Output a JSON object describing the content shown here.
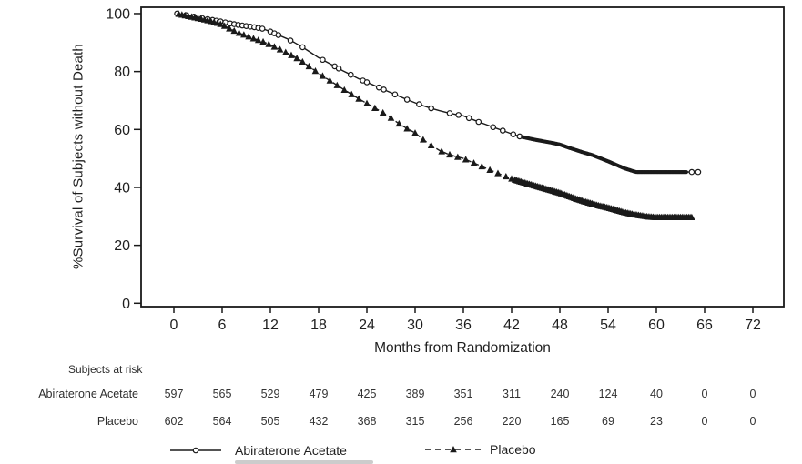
{
  "colors": {
    "ink": "#1a1a1a"
  },
  "y_axis": {
    "label": "%Survival of Subjects without Death",
    "ticks": [
      0,
      20,
      40,
      60,
      80,
      100
    ]
  },
  "x_axis": {
    "label": "Months from Randomization",
    "ticks": [
      0,
      6,
      12,
      18,
      24,
      30,
      36,
      42,
      48,
      54,
      60,
      66,
      72
    ]
  },
  "risk_table": {
    "title": "Subjects at risk",
    "rows": [
      {
        "label": "Abiraterone Acetate",
        "counts": [
          597,
          565,
          529,
          479,
          425,
          389,
          351,
          311,
          240,
          124,
          40,
          0,
          0
        ]
      },
      {
        "label": "Placebo",
        "counts": [
          602,
          564,
          505,
          432,
          368,
          315,
          256,
          220,
          165,
          69,
          23,
          0,
          0
        ]
      }
    ]
  },
  "legend": [
    {
      "label": "Abiraterone Acetate",
      "line": "solid",
      "marker": "open-circle"
    },
    {
      "label": "Placebo",
      "line": "dashed",
      "marker": "filled-triangle"
    }
  ],
  "chart_data": {
    "type": "line",
    "title": "",
    "xlabel": "Months from Randomization",
    "ylabel": "%Survival of Subjects without Death",
    "xlim": [
      0,
      72
    ],
    "ylim": [
      0,
      100
    ],
    "grid": false,
    "legend_position": "bottom",
    "series": [
      {
        "name": "Abiraterone Acetate",
        "line": "solid",
        "marker": "open-circle",
        "points": [
          [
            0.4,
            100
          ],
          [
            1,
            99.7
          ],
          [
            2,
            99.2
          ],
          [
            3,
            98.7
          ],
          [
            4,
            98.2
          ],
          [
            5,
            97.7
          ],
          [
            6,
            97.2
          ],
          [
            7,
            96.6
          ],
          [
            8,
            96.1
          ],
          [
            9,
            95.7
          ],
          [
            10,
            95.3
          ],
          [
            11,
            94.8
          ],
          [
            12,
            93.8
          ],
          [
            13,
            92.6
          ],
          [
            14,
            91.4
          ],
          [
            15,
            90.0
          ],
          [
            16,
            88.4
          ],
          [
            17,
            86.6
          ],
          [
            18,
            84.8
          ],
          [
            19,
            83.3
          ],
          [
            20,
            81.8
          ],
          [
            21,
            80.3
          ],
          [
            22,
            78.9
          ],
          [
            23,
            77.5
          ],
          [
            24,
            76.3
          ],
          [
            25,
            75.1
          ],
          [
            26,
            73.9
          ],
          [
            27,
            72.7
          ],
          [
            28,
            71.5
          ],
          [
            29,
            70.3
          ],
          [
            30,
            69.2
          ],
          [
            31,
            68.2
          ],
          [
            32,
            67.3
          ],
          [
            33,
            66.5
          ],
          [
            34,
            65.8
          ],
          [
            35,
            65.2
          ],
          [
            36,
            64.7
          ],
          [
            37,
            63.6
          ],
          [
            38,
            62.5
          ],
          [
            39,
            61.5
          ],
          [
            40,
            60.5
          ],
          [
            41,
            59.5
          ],
          [
            42,
            58.5
          ],
          [
            43,
            57.6
          ],
          [
            44,
            57.0
          ],
          [
            45,
            56.4
          ],
          [
            46,
            55.9
          ],
          [
            47,
            55.4
          ],
          [
            48,
            54.8
          ],
          [
            49,
            53.8
          ],
          [
            50,
            52.9
          ],
          [
            51,
            52.0
          ],
          [
            52,
            51.2
          ],
          [
            53,
            50.1
          ],
          [
            54,
            49.0
          ],
          [
            55,
            47.8
          ],
          [
            56,
            46.6
          ],
          [
            57,
            45.7
          ],
          [
            57.5,
            45.3
          ],
          [
            65.2,
            45.3
          ]
        ],
        "censor_marks_months": [
          0.4,
          1.5,
          2.5,
          3.5,
          4.2,
          4.8,
          5.3,
          5.8,
          6.4,
          7.0,
          7.5,
          8.0,
          8.5,
          9.0,
          9.5,
          10.0,
          10.5,
          11.0,
          12.0,
          12.5,
          13.0,
          14.5,
          16.0,
          18.5,
          20.0,
          20.5,
          22.0,
          23.5,
          24.0,
          25.5,
          26.1,
          27.5,
          29.0,
          30.5,
          32.0,
          34.3,
          35.4,
          36.7,
          37.9,
          39.7,
          40.9,
          42.2,
          43.0
        ],
        "censor_bands": [
          {
            "from": 43.4,
            "to": 63.8,
            "step": 0.16
          }
        ],
        "end_marks_months": [
          64.4,
          65.2
        ]
      },
      {
        "name": "Placebo",
        "line": "dashed",
        "marker": "filled-triangle",
        "points": [
          [
            0.4,
            100
          ],
          [
            1,
            99.6
          ],
          [
            2,
            99.0
          ],
          [
            3,
            98.4
          ],
          [
            4,
            97.8
          ],
          [
            5,
            97.1
          ],
          [
            6,
            96.2
          ],
          [
            7,
            94.7
          ],
          [
            8,
            93.4
          ],
          [
            9,
            92.4
          ],
          [
            10,
            91.3
          ],
          [
            11,
            90.4
          ],
          [
            12,
            89.2
          ],
          [
            13,
            87.9
          ],
          [
            14,
            86.5
          ],
          [
            15,
            85.1
          ],
          [
            16,
            83.4
          ],
          [
            17,
            81.4
          ],
          [
            18,
            79.4
          ],
          [
            19,
            77.6
          ],
          [
            20,
            75.8
          ],
          [
            21,
            74.0
          ],
          [
            22,
            72.3
          ],
          [
            23,
            70.6
          ],
          [
            24,
            69.0
          ],
          [
            25,
            67.4
          ],
          [
            26,
            65.8
          ],
          [
            27,
            64.0
          ],
          [
            28,
            62.0
          ],
          [
            29,
            60.3
          ],
          [
            30,
            58.8
          ],
          [
            31,
            56.5
          ],
          [
            32,
            54.5
          ],
          [
            33,
            52.8
          ],
          [
            34,
            51.6
          ],
          [
            35,
            50.7
          ],
          [
            36,
            50.0
          ],
          [
            37,
            48.8
          ],
          [
            38,
            47.6
          ],
          [
            39,
            46.4
          ],
          [
            40,
            45.2
          ],
          [
            41,
            44.1
          ],
          [
            42,
            43.0
          ],
          [
            43,
            42.1
          ],
          [
            44,
            41.3
          ],
          [
            45,
            40.5
          ],
          [
            46,
            39.7
          ],
          [
            47,
            38.9
          ],
          [
            48,
            38.1
          ],
          [
            49,
            37.1
          ],
          [
            50,
            36.1
          ],
          [
            51,
            35.2
          ],
          [
            52,
            34.4
          ],
          [
            53,
            33.6
          ],
          [
            54,
            33.0
          ],
          [
            55,
            32.2
          ],
          [
            56,
            31.4
          ],
          [
            57,
            30.8
          ],
          [
            58,
            30.3
          ],
          [
            59,
            29.9
          ],
          [
            60,
            29.7
          ],
          [
            64.6,
            29.7
          ]
        ],
        "censor_marks_months": [
          0.6,
          1.0,
          1.4,
          1.8,
          2.2,
          2.6,
          3.0,
          3.4,
          3.8,
          4.2,
          4.6,
          5.0,
          5.4,
          5.8,
          6.3,
          6.9,
          7.5,
          8.1,
          8.7,
          9.3,
          9.9,
          10.5,
          11.1,
          11.8,
          12.5,
          13.2,
          13.9,
          14.6,
          15.3,
          16.0,
          16.8,
          17.6,
          18.5,
          19.4,
          20.3,
          21.2,
          22.1,
          23.0,
          24.0,
          25.0,
          26.0,
          27.0,
          28.0,
          29.0,
          30.0,
          31.0,
          32.0,
          33.3,
          34.3,
          35.3,
          36.3,
          37.3,
          38.3,
          39.3,
          40.3,
          41.3,
          42.0
        ],
        "censor_bands": [
          {
            "from": 42.4,
            "to": 64.6,
            "step": 0.2
          }
        ],
        "end_marks_months": []
      }
    ]
  }
}
